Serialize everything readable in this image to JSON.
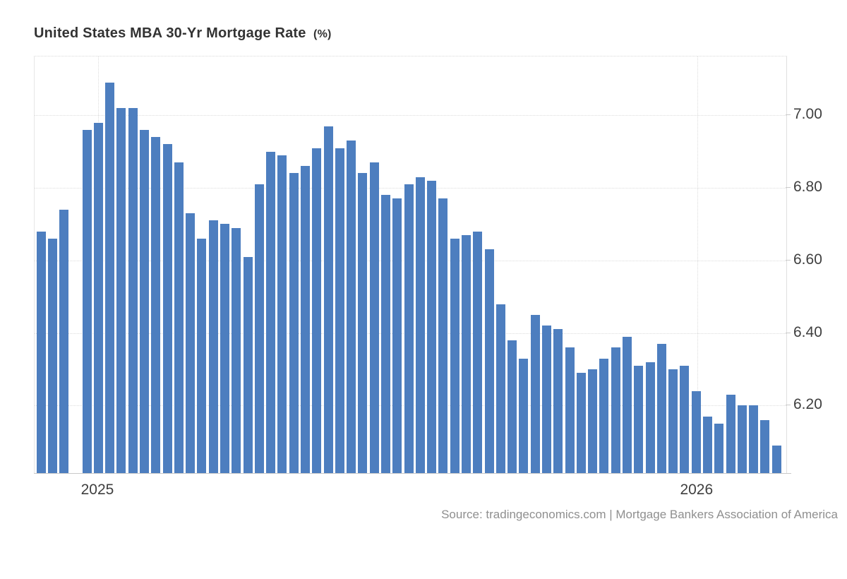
{
  "header": {
    "title": "United States MBA 30-Yr Mortgage Rate",
    "unit": "(%)"
  },
  "footer": {
    "source_text": "Source: tradingeconomics.com | Mortgage Bankers Association of America"
  },
  "chart_data": {
    "type": "bar",
    "title": "United States MBA 30-Yr Mortgage Rate (%)",
    "xlabel": "",
    "ylabel": "",
    "ylim": [
      6.012,
      7.162
    ],
    "grid": true,
    "legend": "none",
    "bar_color": "#4d7ebf",
    "grid_color": "#dcdcdc",
    "axis_line_color": "#c9c9c9",
    "tick_label_color": "#3f3f3f",
    "y_ticks": [
      {
        "label": "7.00",
        "value": 7.0
      },
      {
        "label": "6.80",
        "value": 6.8
      },
      {
        "label": "6.60",
        "value": 6.6
      },
      {
        "label": "6.40",
        "value": 6.4
      },
      {
        "label": "6.20",
        "value": 6.2
      }
    ],
    "x_ticks": [
      {
        "label": "2025",
        "pos": 0.0845
      },
      {
        "label": "2026",
        "pos": 0.8815
      }
    ],
    "note": "weekly bars, one missing week (null) near the 2025 year boundary",
    "values": [
      6.68,
      6.66,
      6.74,
      null,
      6.96,
      6.98,
      7.09,
      7.02,
      7.02,
      6.96,
      6.94,
      6.92,
      6.87,
      6.73,
      6.66,
      6.71,
      6.7,
      6.69,
      6.61,
      6.81,
      6.9,
      6.89,
      6.84,
      6.86,
      6.91,
      6.97,
      6.91,
      6.93,
      6.84,
      6.87,
      6.78,
      6.77,
      6.81,
      6.83,
      6.82,
      6.77,
      6.66,
      6.67,
      6.68,
      6.63,
      6.48,
      6.38,
      6.33,
      6.45,
      6.42,
      6.41,
      6.36,
      6.29,
      6.3,
      6.33,
      6.36,
      6.39,
      6.31,
      6.32,
      6.37,
      6.3,
      6.31,
      6.24,
      6.17,
      6.15,
      6.23,
      6.2,
      6.2,
      6.16,
      6.09
    ]
  }
}
